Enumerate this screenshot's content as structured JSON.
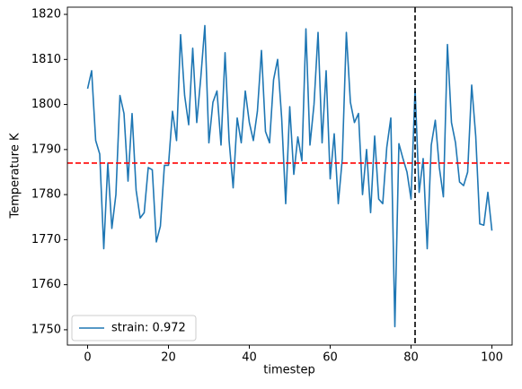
{
  "chart_data": {
    "type": "line",
    "xlabel": "timestep",
    "ylabel": "Temperature K",
    "x": [
      0,
      1,
      2,
      3,
      4,
      5,
      6,
      7,
      8,
      9,
      10,
      11,
      12,
      13,
      14,
      15,
      16,
      17,
      18,
      19,
      20,
      21,
      22,
      23,
      24,
      25,
      26,
      27,
      28,
      29,
      30,
      31,
      32,
      33,
      34,
      35,
      36,
      37,
      38,
      39,
      40,
      41,
      42,
      43,
      44,
      45,
      46,
      47,
      48,
      49,
      50,
      51,
      52,
      53,
      54,
      55,
      56,
      57,
      58,
      59,
      60,
      61,
      62,
      63,
      64,
      65,
      66,
      67,
      68,
      69,
      70,
      71,
      72,
      73,
      74,
      75,
      76,
      77,
      78,
      79,
      80,
      81,
      82,
      83,
      84,
      85,
      86,
      87,
      88,
      89,
      90,
      91,
      92,
      93,
      94,
      95,
      96,
      97,
      98,
      99,
      100
    ],
    "series": [
      {
        "name": "strain: 0.972",
        "color": "#1f77b4",
        "values": [
          1803.5,
          1807.5,
          1792,
          1789,
          1768,
          1787,
          1772.5,
          1780,
          1802,
          1798,
          1783,
          1798,
          1781,
          1774.8,
          1776,
          1786,
          1785.5,
          1769.5,
          1773,
          1786.5,
          1786.5,
          1798.5,
          1792,
          1815.5,
          1802,
          1795.5,
          1812.5,
          1796,
          1806,
          1817.5,
          1791.5,
          1800.5,
          1803,
          1791,
          1811.5,
          1792,
          1781.5,
          1797,
          1791.5,
          1803,
          1796,
          1792,
          1798.5,
          1812,
          1794,
          1791.5,
          1805.5,
          1810,
          1797,
          1778,
          1799.5,
          1784.5,
          1792.8,
          1787.5,
          1816.8,
          1791,
          1800,
          1816,
          1791.5,
          1807.5,
          1783.5,
          1793.5,
          1778,
          1788,
          1816,
          1800.5,
          1796,
          1798,
          1780,
          1790,
          1776,
          1793,
          1779,
          1778,
          1790.5,
          1797,
          1750.7,
          1791.3,
          1788,
          1785,
          1779,
          1803.5,
          1780.5,
          1788,
          1768,
          1791,
          1796.5,
          1786,
          1779.5,
          1813.3,
          1796,
          1791.5,
          1782.8,
          1782,
          1785,
          1804.3,
          1793,
          1773.5,
          1773.2,
          1780.5,
          1772
        ]
      }
    ],
    "hline": {
      "value": 1787,
      "color": "#ff0000"
    },
    "vline": {
      "value": 81,
      "color": "#000000"
    },
    "xlim": [
      -5,
      105
    ],
    "ylim": [
      1746.6,
      1821.6
    ],
    "xticks": [
      0,
      20,
      40,
      60,
      80,
      100
    ],
    "yticks": [
      1750,
      1760,
      1770,
      1780,
      1790,
      1800,
      1810,
      1820
    ],
    "legend": "lower left"
  }
}
